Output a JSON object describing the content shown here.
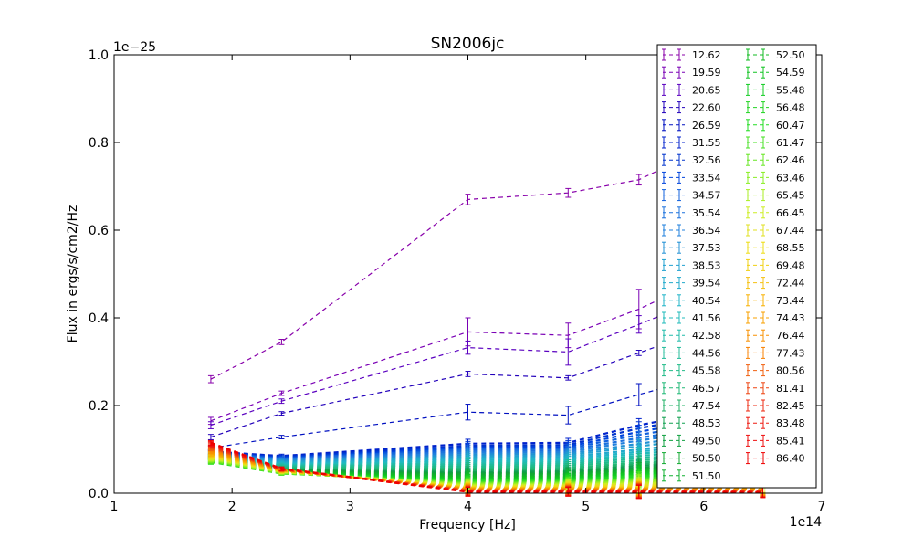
{
  "chart_data": {
    "type": "line",
    "title": "SN2006jc",
    "xlabel": "Frequency [Hz]",
    "ylabel": "Flux in ergs/s/cm2/Hz",
    "x_offset_label": "1e14",
    "y_offset_label": "1e−25",
    "xlim": [
      1,
      7
    ],
    "ylim": [
      0,
      1.0
    ],
    "xticks": [
      "1",
      "2",
      "3",
      "4",
      "5",
      "6",
      "7"
    ],
    "yticks": [
      "0.0",
      "0.2",
      "0.4",
      "0.6",
      "0.8",
      "1.0"
    ],
    "grid": false,
    "legend_placement": "upper-right",
    "x": [
      1.82,
      2.42,
      4.0,
      4.85,
      5.45,
      6.5
    ],
    "series": [
      {
        "name": "12.62",
        "color": "#8800aa",
        "values": [
          0.26,
          0.345,
          0.67,
          0.685,
          0.715,
          0.85
        ],
        "errors": [
          0.008,
          0.006,
          0.012,
          0.01,
          0.012,
          0.012
        ]
      },
      {
        "name": "19.59",
        "color": "#7a00b5",
        "values": [
          0.165,
          0.228,
          0.368,
          0.36,
          0.42,
          0.55
        ],
        "errors": [
          0.008,
          0.005,
          0.032,
          0.028,
          0.045,
          0.03
        ]
      },
      {
        "name": "20.65",
        "color": "#5a00c0",
        "values": [
          0.155,
          0.21,
          0.332,
          0.322,
          0.385,
          0.5
        ],
        "errors": [
          0.008,
          0.005,
          0.015,
          0.03,
          0.02,
          0.02
        ]
      },
      {
        "name": "22.60",
        "color": "#2200bb",
        "values": [
          0.128,
          0.182,
          0.272,
          0.263,
          0.32,
          0.42
        ],
        "errors": [
          0.006,
          0.004,
          0.006,
          0.005,
          0.006,
          0.008
        ]
      },
      {
        "name": "26.59",
        "color": "#0010c0",
        "values": [
          0.103,
          0.128,
          0.185,
          0.178,
          0.225,
          0.3
        ],
        "errors": [
          0.005,
          0.004,
          0.018,
          0.02,
          0.025,
          0.02
        ]
      },
      {
        "name": "31.55",
        "color": "#0022cc",
        "values": [
          0.095,
          0.085,
          0.113,
          0.115,
          0.155,
          0.21
        ],
        "errors": [
          0.005,
          0.004,
          0.01,
          0.01,
          0.015,
          0.012
        ]
      },
      {
        "name": "32.56",
        "color": "#0033cc",
        "values": [
          0.094,
          0.083,
          0.108,
          0.11,
          0.148,
          0.2
        ],
        "errors": [
          0.005,
          0.004,
          0.01,
          0.01,
          0.015,
          0.012
        ]
      },
      {
        "name": "33.54",
        "color": "#0044dd",
        "values": [
          0.093,
          0.081,
          0.104,
          0.106,
          0.14,
          0.19
        ],
        "errors": [
          0.005,
          0.004,
          0.01,
          0.01,
          0.015,
          0.012
        ]
      },
      {
        "name": "34.57",
        "color": "#1060dd",
        "values": [
          0.092,
          0.079,
          0.1,
          0.102,
          0.133,
          0.18
        ],
        "errors": [
          0.005,
          0.004,
          0.01,
          0.01,
          0.015,
          0.012
        ]
      },
      {
        "name": "35.54",
        "color": "#1a70dd",
        "values": [
          0.091,
          0.077,
          0.096,
          0.098,
          0.126,
          0.17
        ],
        "errors": [
          0.005,
          0.004,
          0.01,
          0.01,
          0.015,
          0.012
        ]
      },
      {
        "name": "36.54",
        "color": "#2080dd",
        "values": [
          0.09,
          0.075,
          0.092,
          0.094,
          0.12,
          0.16
        ],
        "errors": [
          0.005,
          0.004,
          0.01,
          0.01,
          0.015,
          0.012
        ]
      },
      {
        "name": "37.53",
        "color": "#2090d5",
        "values": [
          0.089,
          0.073,
          0.088,
          0.09,
          0.113,
          0.15
        ],
        "errors": [
          0.005,
          0.004,
          0.01,
          0.01,
          0.015,
          0.012
        ]
      },
      {
        "name": "38.53",
        "color": "#20a0d0",
        "values": [
          0.088,
          0.071,
          0.084,
          0.086,
          0.107,
          0.14
        ],
        "errors": [
          0.005,
          0.004,
          0.01,
          0.01,
          0.015,
          0.012
        ]
      },
      {
        "name": "39.54",
        "color": "#20aacc",
        "values": [
          0.087,
          0.069,
          0.08,
          0.082,
          0.1,
          0.13
        ],
        "errors": [
          0.005,
          0.004,
          0.01,
          0.01,
          0.015,
          0.012
        ]
      },
      {
        "name": "40.54",
        "color": "#20b4c8",
        "values": [
          0.086,
          0.067,
          0.076,
          0.078,
          0.095,
          0.122
        ],
        "errors": [
          0.005,
          0.004,
          0.01,
          0.01,
          0.015,
          0.012
        ]
      },
      {
        "name": "41.56",
        "color": "#20bbbb",
        "values": [
          0.085,
          0.065,
          0.072,
          0.074,
          0.09,
          0.115
        ],
        "errors": [
          0.005,
          0.004,
          0.01,
          0.01,
          0.015,
          0.012
        ]
      },
      {
        "name": "42.58",
        "color": "#20bbaa",
        "values": [
          0.084,
          0.063,
          0.068,
          0.07,
          0.085,
          0.108
        ],
        "errors": [
          0.005,
          0.004,
          0.01,
          0.01,
          0.015,
          0.012
        ]
      },
      {
        "name": "44.56",
        "color": "#20bb99",
        "values": [
          0.083,
          0.061,
          0.064,
          0.066,
          0.08,
          0.1
        ],
        "errors": [
          0.005,
          0.004,
          0.01,
          0.01,
          0.015,
          0.012
        ]
      },
      {
        "name": "45.58",
        "color": "#20bb88",
        "values": [
          0.082,
          0.059,
          0.06,
          0.062,
          0.075,
          0.094
        ],
        "errors": [
          0.005,
          0.004,
          0.01,
          0.01,
          0.015,
          0.012
        ]
      },
      {
        "name": "46.57",
        "color": "#20b877",
        "values": [
          0.081,
          0.057,
          0.056,
          0.058,
          0.07,
          0.088
        ],
        "errors": [
          0.005,
          0.004,
          0.01,
          0.01,
          0.015,
          0.012
        ]
      },
      {
        "name": "47.54",
        "color": "#20b066",
        "values": [
          0.08,
          0.055,
          0.052,
          0.054,
          0.066,
          0.082
        ],
        "errors": [
          0.005,
          0.004,
          0.01,
          0.01,
          0.015,
          0.012
        ]
      },
      {
        "name": "48.53",
        "color": "#10a050",
        "values": [
          0.079,
          0.053,
          0.048,
          0.05,
          0.062,
          0.077
        ],
        "errors": [
          0.005,
          0.004,
          0.01,
          0.01,
          0.015,
          0.012
        ]
      },
      {
        "name": "49.50",
        "color": "#10a040",
        "values": [
          0.078,
          0.052,
          0.045,
          0.047,
          0.058,
          0.072
        ],
        "errors": [
          0.005,
          0.004,
          0.01,
          0.01,
          0.015,
          0.012
        ]
      },
      {
        "name": "50.50",
        "color": "#10aa30",
        "values": [
          0.077,
          0.051,
          0.042,
          0.044,
          0.055,
          0.068
        ],
        "errors": [
          0.005,
          0.004,
          0.01,
          0.01,
          0.015,
          0.012
        ]
      },
      {
        "name": "51.50",
        "color": "#10b030",
        "values": [
          0.076,
          0.05,
          0.039,
          0.041,
          0.052,
          0.064
        ],
        "errors": [
          0.005,
          0.004,
          0.01,
          0.01,
          0.015,
          0.012
        ]
      },
      {
        "name": "52.50",
        "color": "#11bb22",
        "values": [
          0.075,
          0.049,
          0.036,
          0.038,
          0.049,
          0.06
        ],
        "errors": [
          0.005,
          0.004,
          0.01,
          0.01,
          0.015,
          0.012
        ]
      },
      {
        "name": "54.59",
        "color": "#11c422",
        "values": [
          0.074,
          0.048,
          0.033,
          0.035,
          0.046,
          0.056
        ],
        "errors": [
          0.005,
          0.004,
          0.01,
          0.01,
          0.015,
          0.012
        ]
      },
      {
        "name": "55.48",
        "color": "#11cc22",
        "values": [
          0.073,
          0.047,
          0.031,
          0.033,
          0.043,
          0.052
        ],
        "errors": [
          0.005,
          0.004,
          0.01,
          0.01,
          0.015,
          0.012
        ]
      },
      {
        "name": "56.48",
        "color": "#22d422",
        "values": [
          0.072,
          0.046,
          0.029,
          0.031,
          0.04,
          0.048
        ],
        "errors": [
          0.005,
          0.004,
          0.01,
          0.01,
          0.015,
          0.012
        ]
      },
      {
        "name": "60.47",
        "color": "#22dd22",
        "values": [
          0.071,
          0.045,
          0.027,
          0.029,
          0.037,
          0.044
        ],
        "errors": [
          0.005,
          0.004,
          0.01,
          0.01,
          0.015,
          0.012
        ]
      },
      {
        "name": "61.47",
        "color": "#44e022",
        "values": [
          0.072,
          0.045,
          0.025,
          0.027,
          0.034,
          0.04
        ],
        "errors": [
          0.005,
          0.004,
          0.01,
          0.01,
          0.015,
          0.012
        ]
      },
      {
        "name": "62.46",
        "color": "#66e622",
        "values": [
          0.074,
          0.046,
          0.023,
          0.025,
          0.031,
          0.036
        ],
        "errors": [
          0.005,
          0.004,
          0.01,
          0.01,
          0.015,
          0.012
        ]
      },
      {
        "name": "63.46",
        "color": "#88ee22",
        "values": [
          0.076,
          0.047,
          0.021,
          0.023,
          0.028,
          0.032
        ],
        "errors": [
          0.005,
          0.004,
          0.01,
          0.01,
          0.015,
          0.012
        ]
      },
      {
        "name": "65.45",
        "color": "#aaee22",
        "values": [
          0.078,
          0.048,
          0.019,
          0.021,
          0.025,
          0.028
        ],
        "errors": [
          0.005,
          0.004,
          0.01,
          0.01,
          0.015,
          0.012
        ]
      },
      {
        "name": "66.45",
        "color": "#ccee22",
        "values": [
          0.08,
          0.049,
          0.017,
          0.019,
          0.022,
          0.024
        ],
        "errors": [
          0.005,
          0.004,
          0.01,
          0.01,
          0.015,
          0.012
        ]
      },
      {
        "name": "67.44",
        "color": "#e0e022",
        "values": [
          0.082,
          0.05,
          0.015,
          0.017,
          0.019,
          0.02
        ],
        "errors": [
          0.005,
          0.004,
          0.01,
          0.01,
          0.015,
          0.012
        ]
      },
      {
        "name": "68.55",
        "color": "#eedd11",
        "values": [
          0.084,
          0.05,
          0.014,
          0.015,
          0.016,
          0.016
        ],
        "errors": [
          0.005,
          0.004,
          0.01,
          0.01,
          0.015,
          0.012
        ]
      },
      {
        "name": "69.48",
        "color": "#f0d011",
        "values": [
          0.086,
          0.051,
          0.013,
          0.013,
          0.014,
          0.013
        ],
        "errors": [
          0.005,
          0.004,
          0.01,
          0.01,
          0.015,
          0.012
        ]
      },
      {
        "name": "72.44",
        "color": "#f5c011",
        "values": [
          0.088,
          0.051,
          0.012,
          0.012,
          0.012,
          0.011
        ],
        "errors": [
          0.005,
          0.004,
          0.01,
          0.01,
          0.015,
          0.012
        ]
      },
      {
        "name": "73.44",
        "color": "#f8b000",
        "values": [
          0.09,
          0.052,
          0.011,
          0.011,
          0.011,
          0.009
        ],
        "errors": [
          0.005,
          0.004,
          0.01,
          0.01,
          0.015,
          0.012
        ]
      },
      {
        "name": "74.43",
        "color": "#f8a000",
        "values": [
          0.093,
          0.052,
          0.01,
          0.01,
          0.01,
          0.008
        ],
        "errors": [
          0.005,
          0.004,
          0.01,
          0.01,
          0.015,
          0.012
        ]
      },
      {
        "name": "76.44",
        "color": "#f89000",
        "values": [
          0.096,
          0.053,
          0.009,
          0.009,
          0.009,
          0.007
        ],
        "errors": [
          0.005,
          0.004,
          0.01,
          0.01,
          0.015,
          0.012
        ]
      },
      {
        "name": "77.43",
        "color": "#f88000",
        "values": [
          0.099,
          0.053,
          0.008,
          0.008,
          0.008,
          0.006
        ],
        "errors": [
          0.005,
          0.004,
          0.01,
          0.01,
          0.015,
          0.012
        ]
      },
      {
        "name": "80.56",
        "color": "#f06010",
        "values": [
          0.102,
          0.054,
          0.007,
          0.007,
          0.007,
          0.005
        ],
        "errors": [
          0.005,
          0.004,
          0.01,
          0.01,
          0.015,
          0.012
        ]
      },
      {
        "name": "81.41",
        "color": "#ee4410",
        "values": [
          0.105,
          0.054,
          0.006,
          0.006,
          0.006,
          0.004
        ],
        "errors": [
          0.005,
          0.004,
          0.01,
          0.01,
          0.015,
          0.012
        ]
      },
      {
        "name": "82.45",
        "color": "#ee2a10",
        "values": [
          0.108,
          0.055,
          0.005,
          0.005,
          0.005,
          0.003
        ],
        "errors": [
          0.005,
          0.004,
          0.01,
          0.01,
          0.015,
          0.012
        ]
      },
      {
        "name": "83.48",
        "color": "#ee1a10",
        "values": [
          0.111,
          0.055,
          0.004,
          0.004,
          0.004,
          0.003
        ],
        "errors": [
          0.005,
          0.004,
          0.01,
          0.01,
          0.015,
          0.012
        ]
      },
      {
        "name": "85.41",
        "color": "#ee1010",
        "values": [
          0.113,
          0.056,
          0.004,
          0.004,
          0.003,
          0.002
        ],
        "errors": [
          0.005,
          0.004,
          0.01,
          0.01,
          0.015,
          0.012
        ]
      },
      {
        "name": "86.40",
        "color": "#ee0000",
        "values": [
          0.115,
          0.056,
          0.003,
          0.003,
          0.003,
          0.002
        ],
        "errors": [
          0.005,
          0.004,
          0.01,
          0.01,
          0.015,
          0.012
        ]
      }
    ]
  }
}
